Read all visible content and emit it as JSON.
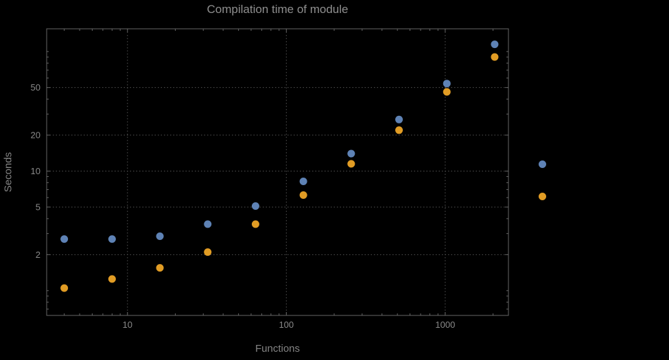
{
  "chart_data": {
    "type": "scatter",
    "title": "Compilation time of module",
    "xlabel": "Functions",
    "ylabel": "Seconds",
    "x_scale": "log",
    "y_scale": "log",
    "xlim": [
      3.1,
      2500
    ],
    "ylim": [
      0.62,
      155
    ],
    "x_ticks": [
      10,
      100,
      1000
    ],
    "y_ticks": [
      2,
      5,
      10,
      20,
      50
    ],
    "x_minor_ticks": [
      4,
      5,
      6,
      7,
      8,
      9,
      20,
      30,
      40,
      50,
      60,
      70,
      80,
      90,
      200,
      300,
      400,
      500,
      600,
      700,
      800,
      900,
      2000
    ],
    "y_minor_ticks": [
      0.7,
      0.8,
      0.9,
      1,
      3,
      4,
      6,
      7,
      8,
      9,
      30,
      40,
      60,
      70,
      80,
      90,
      100
    ],
    "x_gridlines": [
      10,
      100,
      1000
    ],
    "y_gridlines": [
      2,
      5,
      10,
      20,
      50
    ],
    "grid": true,
    "gridline_style": "dotted",
    "legend_position": "right-outside",
    "x": [
      4,
      8,
      16,
      32,
      64,
      128,
      256,
      512,
      1024,
      2048
    ],
    "series": [
      {
        "name": "blue",
        "color": "#5e82b5",
        "values": [
          2.7,
          2.7,
          2.85,
          3.6,
          5.1,
          8.2,
          14,
          27,
          54,
          115
        ]
      },
      {
        "name": "orange",
        "color": "#e19c24",
        "values": [
          1.05,
          1.25,
          1.55,
          2.1,
          3.6,
          6.3,
          11.5,
          22,
          46,
          90
        ]
      }
    ]
  },
  "colors": {
    "background": "#000000",
    "frame": "#666666",
    "gridline": "#545454",
    "tick_text": "#8a8a8a",
    "title_text": "#8f8f8f",
    "axis_label_text": "#848484"
  }
}
